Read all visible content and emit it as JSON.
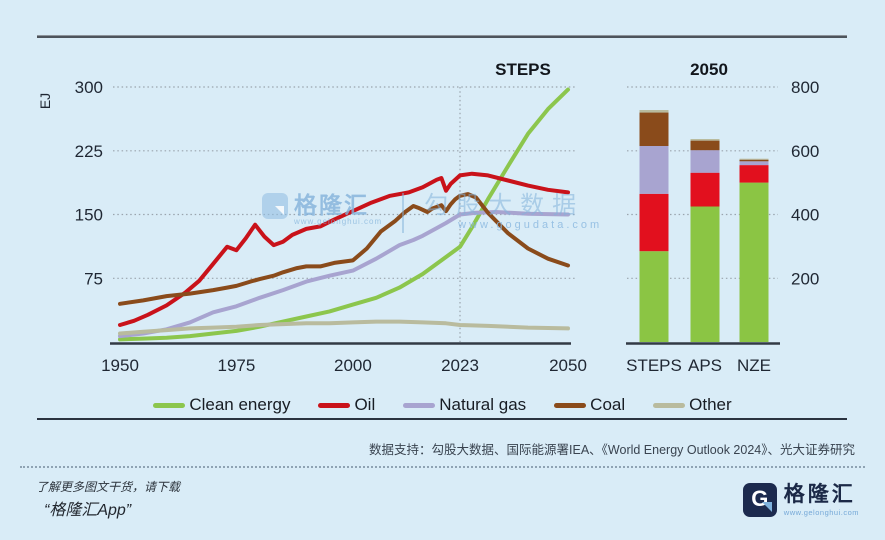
{
  "window": {
    "background": "#d9ecf7"
  },
  "chart_data": {
    "type": "line",
    "subtype": "line chart (world energy demand 1950-2050) plus stacked bar chart (2050 scenarios)",
    "title_line": "STEPS",
    "title_bar": "2050",
    "y_axis_left": {
      "label": "EJ",
      "ticks": [
        300,
        225,
        150,
        75
      ],
      "range": [
        0,
        300
      ]
    },
    "y_axis_right": {
      "ticks": [
        800,
        600,
        400,
        200
      ],
      "range": [
        0,
        800
      ]
    },
    "x_ticks": [
      "1950",
      "1975",
      "2000",
      "2023",
      "2050"
    ],
    "x_range": [
      1950,
      2050
    ],
    "vline_year": 2023,
    "grid": "dotted horizontal gridlines, dotted vertical line at 2023",
    "series": [
      {
        "name": "Clean energy",
        "color": "#8cc64d",
        "points": [
          [
            1950,
            3
          ],
          [
            1955,
            4
          ],
          [
            1960,
            5
          ],
          [
            1965,
            7
          ],
          [
            1970,
            10
          ],
          [
            1975,
            13
          ],
          [
            1980,
            18
          ],
          [
            1985,
            24
          ],
          [
            1990,
            30
          ],
          [
            1995,
            36
          ],
          [
            2000,
            44
          ],
          [
            2005,
            52
          ],
          [
            2010,
            64
          ],
          [
            2015,
            80
          ],
          [
            2020,
            100
          ],
          [
            2023,
            112
          ],
          [
            2026,
            135
          ],
          [
            2030,
            168
          ],
          [
            2035,
            207
          ],
          [
            2040,
            245
          ],
          [
            2045,
            274
          ],
          [
            2050,
            297
          ]
        ]
      },
      {
        "name": "Oil",
        "color": "#c9121a",
        "points": [
          [
            1950,
            20
          ],
          [
            1953,
            25
          ],
          [
            1956,
            32
          ],
          [
            1960,
            43
          ],
          [
            1964,
            58
          ],
          [
            1967,
            72
          ],
          [
            1970,
            92
          ],
          [
            1973,
            112
          ],
          [
            1975,
            108
          ],
          [
            1977,
            122
          ],
          [
            1979,
            138
          ],
          [
            1981,
            124
          ],
          [
            1983,
            114
          ],
          [
            1985,
            118
          ],
          [
            1987,
            126
          ],
          [
            1990,
            133
          ],
          [
            1993,
            136
          ],
          [
            1996,
            144
          ],
          [
            2000,
            154
          ],
          [
            2004,
            164
          ],
          [
            2008,
            172
          ],
          [
            2012,
            176
          ],
          [
            2015,
            182
          ],
          [
            2018,
            191
          ],
          [
            2019,
            193
          ],
          [
            2020,
            178
          ],
          [
            2021,
            186
          ],
          [
            2023,
            196
          ],
          [
            2026,
            198
          ],
          [
            2030,
            196
          ],
          [
            2035,
            190
          ],
          [
            2040,
            184
          ],
          [
            2045,
            179
          ],
          [
            2050,
            176
          ]
        ]
      },
      {
        "name": "Natural gas",
        "color": "#a8a4d0",
        "points": [
          [
            1950,
            7
          ],
          [
            1955,
            10
          ],
          [
            1960,
            15
          ],
          [
            1965,
            23
          ],
          [
            1970,
            35
          ],
          [
            1975,
            42
          ],
          [
            1980,
            52
          ],
          [
            1985,
            61
          ],
          [
            1990,
            71
          ],
          [
            1995,
            78
          ],
          [
            2000,
            84
          ],
          [
            2005,
            98
          ],
          [
            2010,
            114
          ],
          [
            2013,
            120
          ],
          [
            2015,
            125
          ],
          [
            2018,
            134
          ],
          [
            2020,
            140
          ],
          [
            2023,
            150
          ],
          [
            2027,
            152
          ],
          [
            2032,
            153
          ],
          [
            2040,
            151
          ],
          [
            2050,
            150
          ]
        ]
      },
      {
        "name": "Coal",
        "color": "#8a4b1b",
        "points": [
          [
            1950,
            45
          ],
          [
            1955,
            49
          ],
          [
            1960,
            54
          ],
          [
            1965,
            57
          ],
          [
            1970,
            61
          ],
          [
            1973,
            64
          ],
          [
            1975,
            66
          ],
          [
            1978,
            71
          ],
          [
            1980,
            74
          ],
          [
            1983,
            78
          ],
          [
            1985,
            82
          ],
          [
            1988,
            87
          ],
          [
            1990,
            89
          ],
          [
            1993,
            89
          ],
          [
            1996,
            93
          ],
          [
            2000,
            96
          ],
          [
            2003,
            110
          ],
          [
            2006,
            130
          ],
          [
            2009,
            142
          ],
          [
            2011,
            152
          ],
          [
            2013,
            160
          ],
          [
            2014,
            158
          ],
          [
            2016,
            153
          ],
          [
            2017,
            157
          ],
          [
            2019,
            161
          ],
          [
            2020,
            154
          ],
          [
            2021,
            162
          ],
          [
            2022,
            168
          ],
          [
            2023,
            172
          ],
          [
            2025,
            174
          ],
          [
            2027,
            170
          ],
          [
            2030,
            152
          ],
          [
            2035,
            128
          ],
          [
            2040,
            110
          ],
          [
            2045,
            98
          ],
          [
            2050,
            90
          ]
        ]
      },
      {
        "name": "Other",
        "color": "#b9bb9e",
        "points": [
          [
            1950,
            10
          ],
          [
            1955,
            12
          ],
          [
            1960,
            14
          ],
          [
            1965,
            16
          ],
          [
            1970,
            17
          ],
          [
            1975,
            18
          ],
          [
            1980,
            20
          ],
          [
            1985,
            21
          ],
          [
            1990,
            22
          ],
          [
            1995,
            22
          ],
          [
            2000,
            23
          ],
          [
            2005,
            24
          ],
          [
            2010,
            24
          ],
          [
            2015,
            23
          ],
          [
            2020,
            22
          ],
          [
            2023,
            20
          ],
          [
            2030,
            19
          ],
          [
            2040,
            17
          ],
          [
            2050,
            16
          ]
        ]
      }
    ],
    "bars": {
      "categories": [
        "STEPS",
        "APS",
        "NZE"
      ],
      "segment_order": [
        "Clean energy",
        "Oil",
        "Natural gas",
        "Coal",
        "Other"
      ],
      "segment_colors": [
        "#8bc544",
        "#e2101e",
        "#a8a4d0",
        "#8a4b1b",
        "#b9bb9e"
      ],
      "values": [
        [
          285,
          180,
          150,
          105,
          8
        ],
        [
          425,
          106,
          71,
          30,
          5
        ],
        [
          500,
          55,
          12,
          5,
          3
        ]
      ],
      "axis": "right (0-800 EJ)"
    },
    "legend": [
      {
        "label": "Clean energy",
        "color": "#8cc64d"
      },
      {
        "label": "Oil",
        "color": "#c9121a"
      },
      {
        "label": "Natural gas",
        "color": "#a8a4d0"
      },
      {
        "label": "Coal",
        "color": "#8a4b1b"
      },
      {
        "label": "Other",
        "color": "#b9bb9e"
      }
    ],
    "legend_position": "bottom center"
  },
  "watermark": {
    "brand": "格隆汇",
    "brand_url": "www.gelonghui.com",
    "partner": "勾股大数据",
    "partner_url": "www.gogudata.com"
  },
  "footer": {
    "source": "数据支持：勾股大数据、国际能源署IEA、《World Energy Outlook 2024》、光大证券研究",
    "promo_line1": "了解更多图文干货，请下载",
    "promo_line2": "“格隆汇App”",
    "logo_letter": "G",
    "logo_text": "格隆汇",
    "logo_url": "www.gelonghui.com"
  }
}
